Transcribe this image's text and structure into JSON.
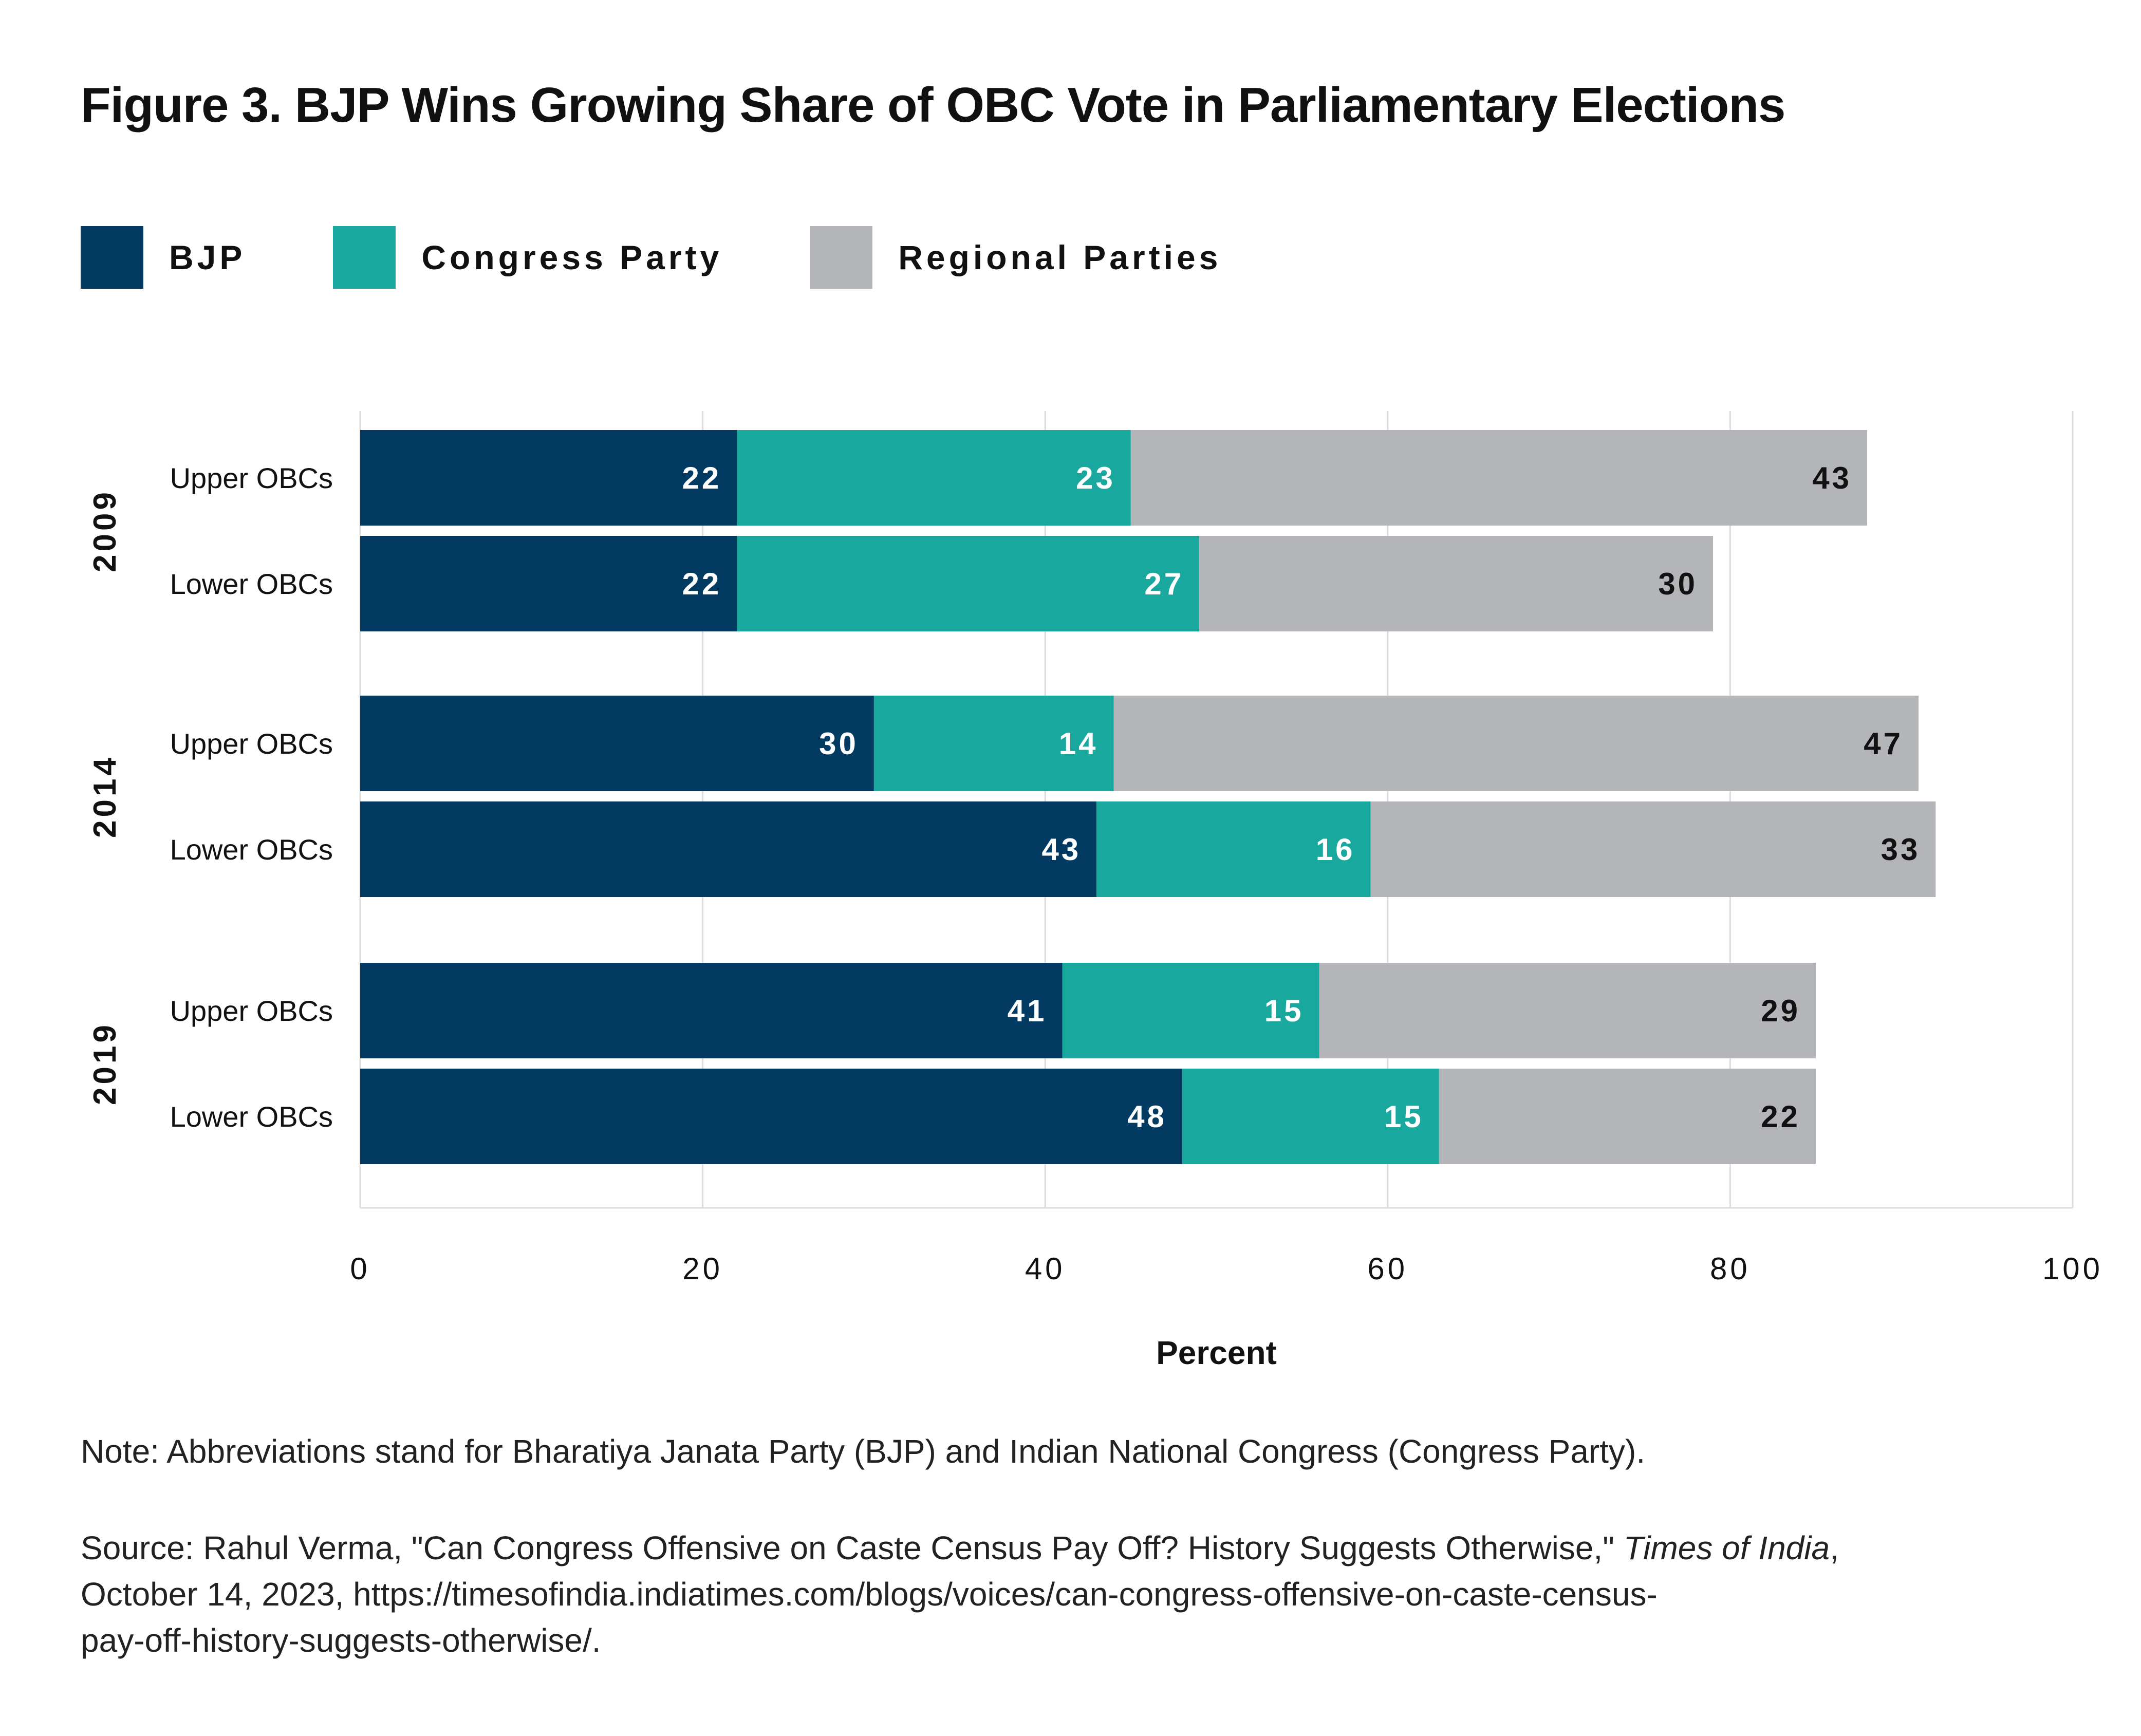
{
  "chart_data": {
    "type": "stacked-bar-horizontal",
    "title": "Figure 3. BJP Wins Growing Share of OBC Vote in Parliamentary Elections",
    "xlabel": "Percent",
    "xlim": [
      0,
      100
    ],
    "xticks": [
      "0",
      "20",
      "40",
      "60",
      "80",
      "100"
    ],
    "grid": true,
    "legend_position": "top-left",
    "groups": [
      {
        "year": "2009",
        "rows": [
          {
            "label": "Upper OBCs",
            "values": [
              22,
              23,
              43
            ]
          },
          {
            "label": "Lower OBCs",
            "values": [
              22,
              27,
              30
            ]
          }
        ]
      },
      {
        "year": "2014",
        "rows": [
          {
            "label": "Upper OBCs",
            "values": [
              30,
              14,
              47
            ]
          },
          {
            "label": "Lower OBCs",
            "values": [
              43,
              16,
              33
            ]
          }
        ]
      },
      {
        "year": "2019",
        "rows": [
          {
            "label": "Upper OBCs",
            "values": [
              41,
              15,
              29
            ]
          },
          {
            "label": "Lower OBCs",
            "values": [
              48,
              15,
              22
            ]
          }
        ]
      }
    ],
    "series": [
      {
        "name": "BJP",
        "color": "#033a62",
        "label_color": "#ffffff"
      },
      {
        "name": "Congress Party",
        "color": "#19a89e",
        "label_color": "#ffffff"
      },
      {
        "name": "Regional Parties",
        "color": "#b4b5b8",
        "label_color": "#111111"
      }
    ]
  },
  "notes": {
    "note": "Note: Abbreviations stand for Bharatiya Janata Party (BJP) and Indian National Congress (Congress Party).",
    "source_prefix": "Source: Rahul Verma, \"Can Congress Offensive on Caste Census Pay Off? History Suggests Otherwise,\" ",
    "source_pub": "Times of India",
    "source_line1_end": ",",
    "source_line2": "October 14, 2023, https://timesofindia.indiatimes.com/blogs/voices/can-congress-offensive-on-caste-census-",
    "source_line3": "pay-off-history-suggests-otherwise/."
  }
}
